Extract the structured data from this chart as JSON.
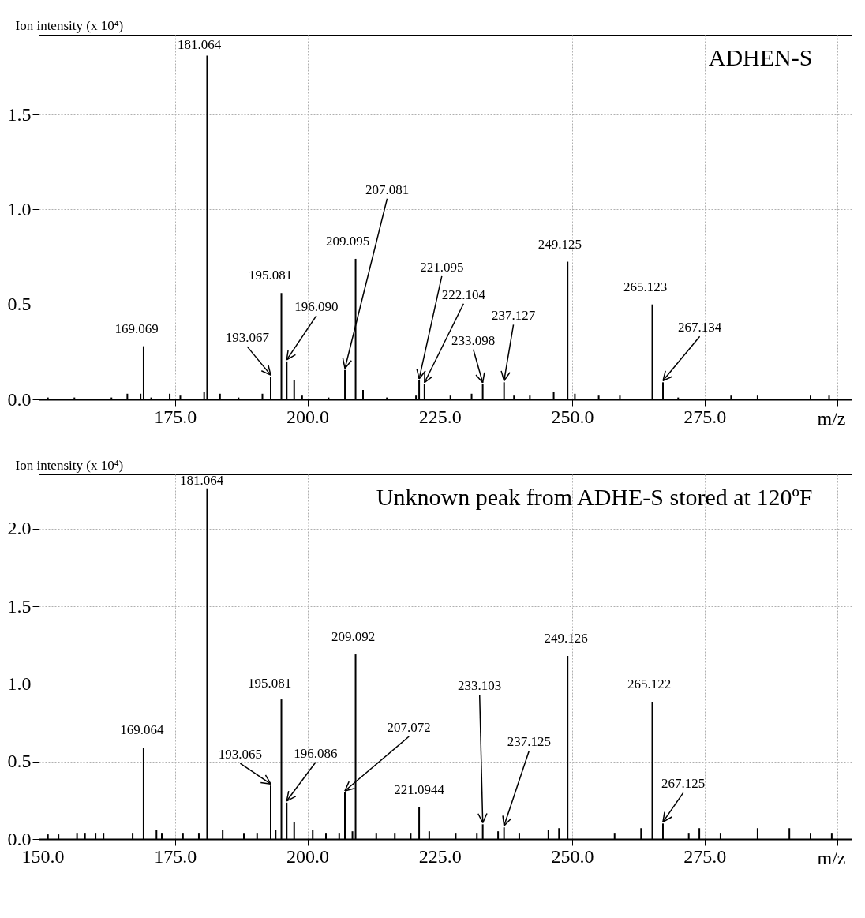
{
  "chart_data": [
    {
      "type": "bar",
      "title": "ADHEN-S",
      "ylabel": "Ion intensity (x 10⁴)",
      "xlabel": "m/z",
      "x": [
        151,
        156,
        163,
        166,
        168.5,
        169.069,
        170.5,
        174,
        176,
        180.5,
        181.064,
        183.5,
        187,
        191.5,
        193.067,
        195.081,
        196.09,
        197.5,
        199,
        204,
        207.081,
        209.095,
        210.5,
        215,
        220.5,
        221.095,
        222.104,
        227,
        231,
        233.098,
        237.127,
        239,
        242,
        246.5,
        249.125,
        250.5,
        255,
        259,
        265.123,
        267.134,
        270,
        280,
        285,
        295,
        298.5
      ],
      "series": [
        {
          "color": "#000000",
          "values": [
            0.01,
            0.01,
            0.01,
            0.03,
            0.03,
            0.28,
            0.01,
            0.03,
            0.02,
            0.04,
            1.81,
            0.03,
            0.01,
            0.03,
            0.12,
            0.56,
            0.2,
            0.1,
            0.02,
            0.01,
            0.155,
            0.74,
            0.05,
            0.01,
            0.02,
            0.1,
            0.08,
            0.02,
            0.03,
            0.08,
            0.09,
            0.02,
            0.02,
            0.04,
            0.725,
            0.03,
            0.02,
            0.02,
            0.5,
            0.09,
            0.01,
            0.02,
            0.02,
            0.02,
            0.02
          ]
        }
      ],
      "xlim": [
        150,
        302
      ],
      "ylim": [
        0,
        1.92
      ],
      "xticks": [
        {
          "value": 150,
          "label": null
        },
        {
          "value": 175,
          "label": "175.0"
        },
        {
          "value": 200,
          "label": "200.0"
        },
        {
          "value": 225,
          "label": "225.0"
        },
        {
          "value": 250,
          "label": "250.0"
        },
        {
          "value": 275,
          "label": "275.0"
        },
        {
          "value": 300,
          "label": null
        }
      ],
      "yticks": [
        {
          "value": 0,
          "label": "0.0"
        },
        {
          "value": 0.5,
          "label": "0.5"
        },
        {
          "value": 1,
          "label": "1.0"
        },
        {
          "value": 1.5,
          "label": "1.5"
        }
      ],
      "grid": true,
      "annotations": [
        {
          "text": "169.069",
          "x": 169.069,
          "y": 0.28
        },
        {
          "text": "181.064",
          "x": 181.064,
          "y": 1.81
        },
        {
          "text": "193.067",
          "x": 193.067,
          "y": 0.12
        },
        {
          "text": "195.081",
          "x": 195.081,
          "y": 0.56
        },
        {
          "text": "196.090",
          "x": 196.09,
          "y": 0.2
        },
        {
          "text": "207.081",
          "x": 207.081,
          "y": 0.155
        },
        {
          "text": "209.095",
          "x": 209.095,
          "y": 0.74
        },
        {
          "text": "221.095",
          "x": 221.095,
          "y": 0.1
        },
        {
          "text": "222.104",
          "x": 222.104,
          "y": 0.08
        },
        {
          "text": "233.098",
          "x": 233.098,
          "y": 0.08
        },
        {
          "text": "237.127",
          "x": 237.127,
          "y": 0.09
        },
        {
          "text": "249.125",
          "x": 249.125,
          "y": 0.725
        },
        {
          "text": "265.123",
          "x": 265.123,
          "y": 0.5
        },
        {
          "text": "267.134",
          "x": 267.134,
          "y": 0.09
        }
      ]
    },
    {
      "type": "bar",
      "title": "Unknown peak from ADHE-S stored at 120ºF",
      "ylabel": "Ion intensity (x 10⁴)",
      "xlabel": "m/z",
      "x": [
        151,
        153,
        156.5,
        158,
        160,
        161.5,
        167,
        169.064,
        171.5,
        172.5,
        176.5,
        179.5,
        181.064,
        184,
        188,
        190.5,
        193.065,
        194,
        195.081,
        196.086,
        197.5,
        201,
        203.5,
        206,
        207.072,
        208.5,
        209.092,
        213,
        216.5,
        219.5,
        221.0944,
        223,
        228,
        232,
        233.103,
        236,
        237.125,
        240,
        245.5,
        247.5,
        249.126,
        258,
        263,
        265.122,
        267.125,
        272,
        274,
        278,
        285,
        291,
        295,
        299
      ],
      "series": [
        {
          "color": "#000000",
          "values": [
            0.03,
            0.03,
            0.04,
            0.04,
            0.04,
            0.04,
            0.04,
            0.59,
            0.06,
            0.04,
            0.04,
            0.04,
            2.26,
            0.06,
            0.04,
            0.04,
            0.345,
            0.06,
            0.9,
            0.235,
            0.11,
            0.06,
            0.04,
            0.04,
            0.3,
            0.05,
            1.19,
            0.04,
            0.04,
            0.04,
            0.205,
            0.05,
            0.04,
            0.04,
            0.095,
            0.05,
            0.075,
            0.04,
            0.06,
            0.07,
            1.18,
            0.04,
            0.07,
            0.885,
            0.1,
            0.04,
            0.07,
            0.04,
            0.07,
            0.07,
            0.04,
            0.04
          ]
        }
      ],
      "xlim": [
        150,
        302
      ],
      "ylim": [
        0,
        2.35
      ],
      "xticks": [
        {
          "value": 150,
          "label": "150.0"
        },
        {
          "value": 175,
          "label": "175.0"
        },
        {
          "value": 200,
          "label": "200.0"
        },
        {
          "value": 225,
          "label": "225.0"
        },
        {
          "value": 250,
          "label": "250.0"
        },
        {
          "value": 275,
          "label": "275.0"
        },
        {
          "value": 300,
          "label": null
        }
      ],
      "yticks": [
        {
          "value": 0,
          "label": "0.0"
        },
        {
          "value": 0.5,
          "label": "0.5"
        },
        {
          "value": 1,
          "label": "1.0"
        },
        {
          "value": 1.5,
          "label": "1.5"
        },
        {
          "value": 2,
          "label": "2.0"
        }
      ],
      "grid": true,
      "annotations": [
        {
          "text": "169.064",
          "x": 169.064,
          "y": 0.59
        },
        {
          "text": "181.064",
          "x": 181.064,
          "y": 2.26
        },
        {
          "text": "193.065",
          "x": 193.065,
          "y": 0.345
        },
        {
          "text": "195.081",
          "x": 195.081,
          "y": 0.9
        },
        {
          "text": "196.086",
          "x": 196.086,
          "y": 0.235
        },
        {
          "text": "207.072",
          "x": 207.072,
          "y": 0.3
        },
        {
          "text": "209.092",
          "x": 209.092,
          "y": 1.19
        },
        {
          "text": "221.0944",
          "x": 221.0944,
          "y": 0.205
        },
        {
          "text": "233.103",
          "x": 233.103,
          "y": 0.095
        },
        {
          "text": "237.125",
          "x": 237.125,
          "y": 0.075
        },
        {
          "text": "249.126",
          "x": 249.126,
          "y": 1.18
        },
        {
          "text": "265.122",
          "x": 265.122,
          "y": 0.885
        },
        {
          "text": "267.125",
          "x": 267.125,
          "y": 0.1
        }
      ]
    }
  ]
}
